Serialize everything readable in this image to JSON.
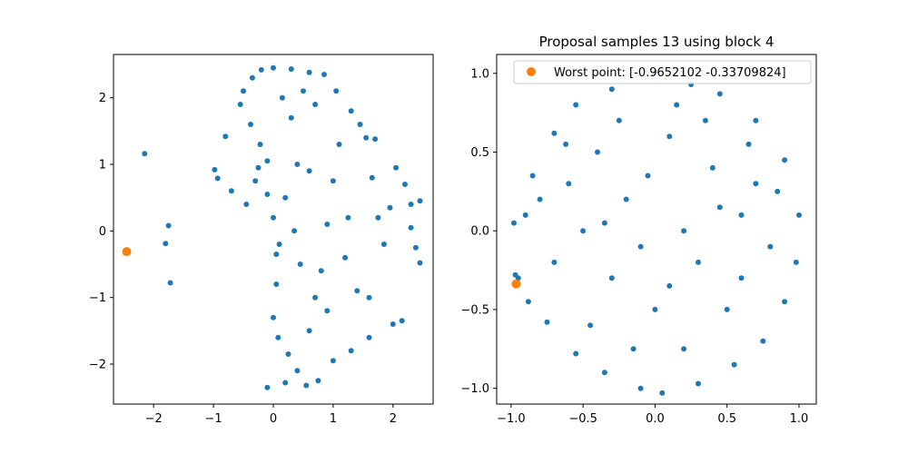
{
  "chart_data": [
    {
      "type": "scatter",
      "title": "",
      "xlabel": "",
      "ylabel": "",
      "xlim": [
        -2.67,
        2.67
      ],
      "ylim": [
        -2.6,
        2.65
      ],
      "xticks": [
        -2,
        -1,
        0,
        1,
        2
      ],
      "yticks": [
        -2,
        -1,
        0,
        1,
        2
      ],
      "tick_labels_x": [
        "−2",
        "−1",
        "0",
        "1",
        "2"
      ],
      "tick_labels_y": [
        "−2",
        "−1",
        "0",
        "1",
        "2"
      ],
      "grid": false,
      "legend": null,
      "series": [
        {
          "color": "#1f77b4",
          "points": [
            [
              -2.15,
              1.16
            ],
            [
              -1.75,
              0.08
            ],
            [
              -1.8,
              -0.19
            ],
            [
              -1.72,
              -0.78
            ],
            [
              -0.98,
              0.92
            ],
            [
              -0.93,
              0.79
            ],
            [
              -0.8,
              1.42
            ],
            [
              -0.7,
              0.6
            ],
            [
              -0.45,
              0.4
            ],
            [
              -0.3,
              0.75
            ],
            [
              -0.1,
              0.55
            ],
            [
              0.05,
              -0.35
            ],
            [
              -0.1,
              -2.35
            ],
            [
              0.2,
              -2.28
            ],
            [
              0.55,
              -2.32
            ],
            [
              0.4,
              -2.1
            ],
            [
              0.75,
              -2.25
            ],
            [
              1.0,
              -1.95
            ],
            [
              1.3,
              -1.8
            ],
            [
              1.6,
              -1.6
            ],
            [
              2.0,
              -1.4
            ],
            [
              2.15,
              -1.35
            ],
            [
              2.45,
              0.45
            ],
            [
              2.45,
              -0.48
            ],
            [
              2.38,
              -0.25
            ],
            [
              2.3,
              0.4
            ],
            [
              2.3,
              0.05
            ],
            [
              2.2,
              0.7
            ],
            [
              2.05,
              0.95
            ],
            [
              1.95,
              0.35
            ],
            [
              1.55,
              1.4
            ],
            [
              1.7,
              1.38
            ],
            [
              1.45,
              1.6
            ],
            [
              1.3,
              1.8
            ],
            [
              1.05,
              2.1
            ],
            [
              0.85,
              2.35
            ],
            [
              0.6,
              2.38
            ],
            [
              0.3,
              2.43
            ],
            [
              0.0,
              2.45
            ],
            [
              -0.2,
              2.42
            ],
            [
              -0.35,
              2.3
            ],
            [
              -0.5,
              2.1
            ],
            [
              -0.55,
              1.9
            ],
            [
              -0.38,
              1.6
            ],
            [
              -0.22,
              1.3
            ],
            [
              -0.1,
              1.05
            ],
            [
              0.0,
              0.2
            ],
            [
              0.1,
              -0.2
            ],
            [
              0.05,
              -0.8
            ],
            [
              0.0,
              -1.3
            ],
            [
              0.08,
              -1.6
            ],
            [
              0.25,
              -1.85
            ],
            [
              1.0,
              0.75
            ],
            [
              0.9,
              0.1
            ],
            [
              1.2,
              -0.4
            ],
            [
              1.4,
              -0.9
            ],
            [
              0.6,
              -1.5
            ],
            [
              0.9,
              -1.2
            ],
            [
              1.6,
              -1.0
            ],
            [
              1.75,
              0.2
            ],
            [
              1.85,
              -0.2
            ],
            [
              1.65,
              0.8
            ],
            [
              0.7,
              1.9
            ],
            [
              0.4,
              1.0
            ],
            [
              0.2,
              0.5
            ],
            [
              0.45,
              -0.5
            ],
            [
              0.3,
              1.7
            ],
            [
              0.6,
              0.9
            ],
            [
              0.8,
              -0.6
            ],
            [
              1.1,
              1.3
            ],
            [
              0.15,
              2.0
            ],
            [
              0.5,
              2.1
            ],
            [
              -0.25,
              0.95
            ],
            [
              0.7,
              -1.0
            ],
            [
              0.35,
              0.0
            ],
            [
              1.25,
              0.2
            ]
          ]
        },
        {
          "name": "",
          "color": "#ff7f0e",
          "points": [
            [
              -2.45,
              -0.31
            ]
          ]
        }
      ]
    },
    {
      "type": "scatter",
      "title": "Proposal samples 13 using block 4",
      "xlabel": "",
      "ylabel": "",
      "xlim": [
        -1.1,
        1.12
      ],
      "ylim": [
        -1.1,
        1.12
      ],
      "xticks": [
        -1.0,
        -0.5,
        0.0,
        0.5,
        1.0
      ],
      "yticks": [
        -1.0,
        -0.5,
        0.0,
        0.5,
        1.0
      ],
      "tick_labels_x": [
        "−1.0",
        "−0.5",
        "0.0",
        "0.5",
        "1.0"
      ],
      "tick_labels_y": [
        "−1.0",
        "−0.5",
        "0.0",
        "0.5",
        "1.0"
      ],
      "grid": false,
      "legend": "top-right",
      "series": [
        {
          "color": "#1f77b4",
          "points": [
            [
              -0.97,
              -0.28
            ],
            [
              -0.95,
              -0.3
            ],
            [
              -0.98,
              0.05
            ],
            [
              -0.9,
              0.1
            ],
            [
              -0.85,
              0.35
            ],
            [
              -0.7,
              0.62
            ],
            [
              -0.55,
              0.8
            ],
            [
              -0.3,
              0.9
            ],
            [
              0.0,
              1.0
            ],
            [
              0.25,
              0.93
            ],
            [
              0.45,
              0.87
            ],
            [
              0.7,
              0.7
            ],
            [
              0.9,
              0.45
            ],
            [
              1.0,
              0.1
            ],
            [
              0.98,
              -0.2
            ],
            [
              0.9,
              -0.45
            ],
            [
              0.75,
              -0.7
            ],
            [
              0.55,
              -0.85
            ],
            [
              0.3,
              -0.97
            ],
            [
              0.05,
              -1.03
            ],
            [
              -0.1,
              -1.0
            ],
            [
              -0.35,
              -0.9
            ],
            [
              -0.55,
              -0.78
            ],
            [
              -0.75,
              -0.58
            ],
            [
              -0.88,
              -0.45
            ],
            [
              -0.6,
              0.3
            ],
            [
              -0.4,
              0.5
            ],
            [
              -0.2,
              0.2
            ],
            [
              0.1,
              0.6
            ],
            [
              0.4,
              0.4
            ],
            [
              0.6,
              0.1
            ],
            [
              0.3,
              -0.2
            ],
            [
              0.0,
              -0.5
            ],
            [
              -0.3,
              -0.3
            ],
            [
              -0.5,
              0.0
            ],
            [
              0.2,
              0.0
            ],
            [
              -0.1,
              -0.1
            ],
            [
              0.5,
              -0.5
            ],
            [
              0.7,
              0.3
            ],
            [
              -0.7,
              -0.2
            ],
            [
              -0.25,
              0.7
            ],
            [
              0.15,
              0.8
            ],
            [
              0.8,
              -0.1
            ],
            [
              -0.45,
              -0.6
            ],
            [
              0.35,
              0.7
            ],
            [
              0.6,
              -0.3
            ],
            [
              -0.15,
              -0.75
            ],
            [
              0.45,
              0.15
            ],
            [
              -0.62,
              0.55
            ],
            [
              0.85,
              0.25
            ],
            [
              -0.8,
              0.2
            ],
            [
              0.2,
              -0.75
            ],
            [
              -0.05,
              0.35
            ],
            [
              0.65,
              0.55
            ],
            [
              -0.35,
              0.05
            ],
            [
              0.1,
              -0.35
            ]
          ]
        },
        {
          "name": "Worst point: [-0.9652102  -0.33709824]",
          "color": "#ff7f0e",
          "points": [
            [
              -0.965,
              -0.337
            ]
          ]
        }
      ]
    }
  ]
}
